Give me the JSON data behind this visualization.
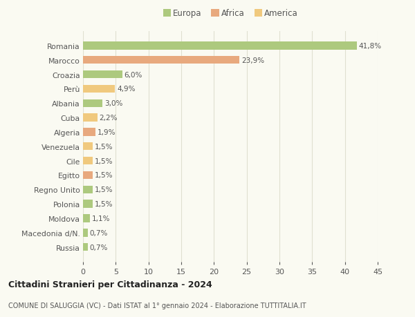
{
  "countries": [
    "Romania",
    "Marocco",
    "Croazia",
    "Perù",
    "Albania",
    "Cuba",
    "Algeria",
    "Venezuela",
    "Cile",
    "Egitto",
    "Regno Unito",
    "Polonia",
    "Moldova",
    "Macedonia d/N.",
    "Russia"
  ],
  "values": [
    41.8,
    23.9,
    6.0,
    4.9,
    3.0,
    2.2,
    1.9,
    1.5,
    1.5,
    1.5,
    1.5,
    1.5,
    1.1,
    0.7,
    0.7
  ],
  "labels": [
    "41,8%",
    "23,9%",
    "6,0%",
    "4,9%",
    "3,0%",
    "2,2%",
    "1,9%",
    "1,5%",
    "1,5%",
    "1,5%",
    "1,5%",
    "1,5%",
    "1,1%",
    "0,7%",
    "0,7%"
  ],
  "colors": [
    "#adc97e",
    "#e8a97e",
    "#adc97e",
    "#f0c97e",
    "#adc97e",
    "#f0c97e",
    "#e8a97e",
    "#f0c97e",
    "#f0c97e",
    "#e8a97e",
    "#adc97e",
    "#adc97e",
    "#adc97e",
    "#adc97e",
    "#adc97e"
  ],
  "legend": {
    "Europa": "#adc97e",
    "Africa": "#e8a97e",
    "America": "#f0c97e"
  },
  "title": "Cittadini Stranieri per Cittadinanza - 2024",
  "subtitle": "COMUNE DI SALUGGIA (VC) - Dati ISTAT al 1° gennaio 2024 - Elaborazione TUTTITALIA.IT",
  "xlim": [
    0,
    45
  ],
  "xticks": [
    0,
    5,
    10,
    15,
    20,
    25,
    30,
    35,
    40,
    45
  ],
  "background_color": "#fafaf2",
  "grid_color": "#e0e0d0",
  "label_fontsize": 7.5,
  "ytick_fontsize": 7.8,
  "xtick_fontsize": 8.0,
  "bar_height": 0.55
}
